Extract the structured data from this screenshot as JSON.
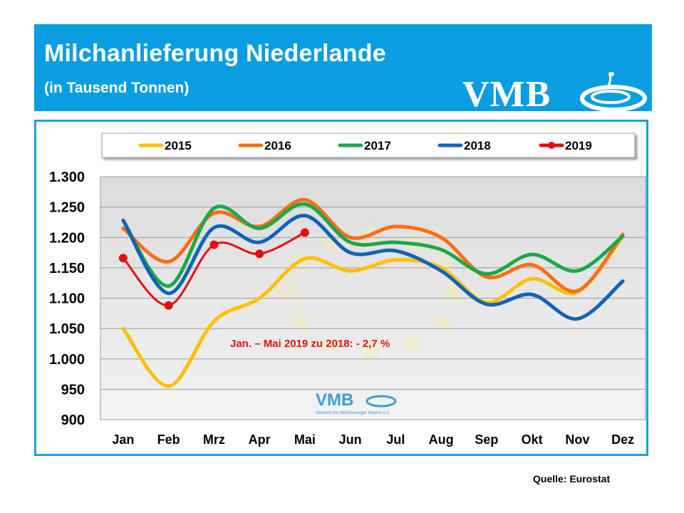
{
  "header": {
    "title": "Milchanlieferung Niederlande",
    "subtitle": "(in Tausend Tonnen)",
    "logo_text": "VMB"
  },
  "watermark": {
    "logo_text": "VMB",
    "caption": "Verband der Milcherzeuger Bayern e.V."
  },
  "annotation": "Jan. – Mai 2019 zu 2018: - 2,7 %",
  "source": "Quelle: Eurostat",
  "colors": {
    "header_bg": "#0a9ee0",
    "frame_border": "#19a2df",
    "plot_bg": "#e3e3e3",
    "annotation": "#e01010"
  },
  "chart_data": {
    "type": "line",
    "title": "Milchanlieferung Niederlande",
    "ylabel": "",
    "xlabel": "",
    "ylim": [
      900,
      1300
    ],
    "yticks": [
      900,
      950,
      1000,
      1050,
      1100,
      1150,
      1200,
      1250,
      1300
    ],
    "ytick_labels": [
      "900",
      "950",
      "1.000",
      "1.050",
      "1.100",
      "1.150",
      "1.200",
      "1.250",
      "1.300"
    ],
    "categories": [
      "Jan",
      "Feb",
      "Mrz",
      "Apr",
      "Mai",
      "Jun",
      "Jul",
      "Aug",
      "Sep",
      "Okt",
      "Nov",
      "Dez"
    ],
    "grid": true,
    "legend_position": "top",
    "series": [
      {
        "name": "2015",
        "color": "#ffc000",
        "markers": false,
        "values": [
          1050,
          955,
          1062,
          1100,
          1165,
          1145,
          1163,
          1150,
          1093,
          1132,
          1110,
          1202
        ]
      },
      {
        "name": "2016",
        "color": "#ff6d10",
        "markers": false,
        "values": [
          1215,
          1160,
          1240,
          1218,
          1262,
          1200,
          1218,
          1200,
          1135,
          1155,
          1112,
          1205
        ]
      },
      {
        "name": "2017",
        "color": "#1aa84a",
        "markers": false,
        "values": [
          1228,
          1120,
          1248,
          1215,
          1255,
          1192,
          1192,
          1180,
          1140,
          1172,
          1145,
          1202
        ]
      },
      {
        "name": "2018",
        "color": "#0f63b8",
        "markers": false,
        "values": [
          1228,
          1108,
          1216,
          1192,
          1236,
          1175,
          1178,
          1145,
          1090,
          1106,
          1066,
          1128
        ]
      },
      {
        "name": "2019",
        "color": "#e01010",
        "markers": true,
        "values": [
          1166,
          1088,
          1188,
          1173,
          1208,
          null,
          null,
          null,
          null,
          null,
          null,
          null
        ]
      }
    ]
  }
}
